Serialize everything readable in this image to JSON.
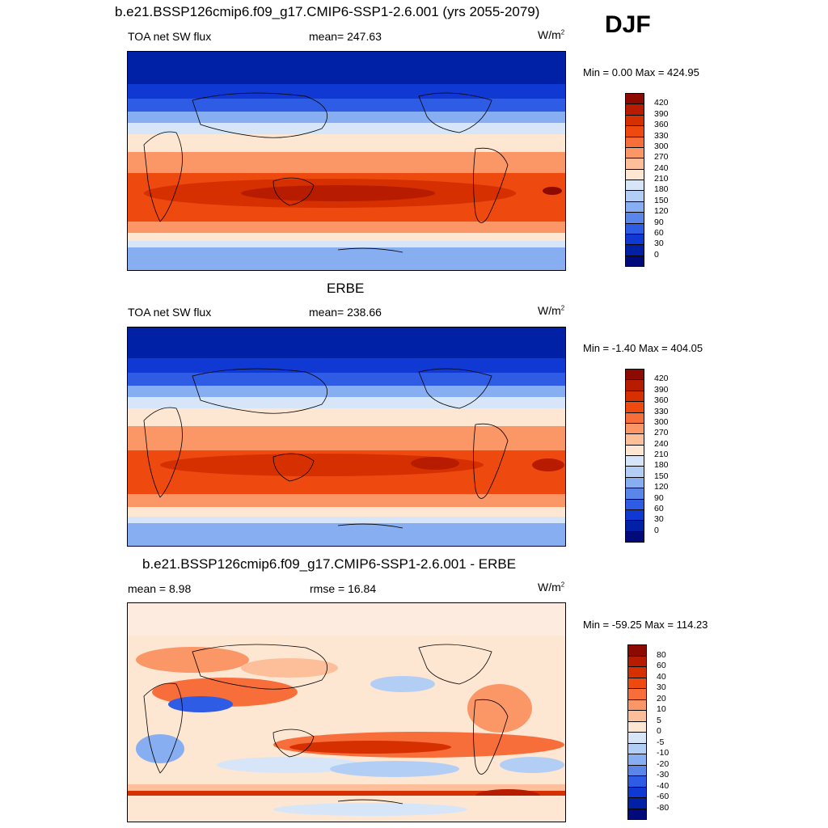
{
  "season": "DJF",
  "panels": [
    {
      "title": "b.e21.BSSP126cmip6.f09_g17.CMIP6-SSP1-2.6.001 (yrs 2055-2079)",
      "left": "TOA net SW flux",
      "middle": "mean= 247.63",
      "units_base": "W/m",
      "units_exp": "2",
      "minmax": "Min =   0.00 Max = 424.95",
      "colorbar": {
        "labels": [
          "420",
          "390",
          "360",
          "330",
          "300",
          "270",
          "240",
          "210",
          "180",
          "150",
          "120",
          "90",
          "60",
          "30",
          "0"
        ],
        "colors": [
          "#8c0a00",
          "#b81c00",
          "#d73000",
          "#ee4a10",
          "#f86e3a",
          "#fb9666",
          "#fdbf9a",
          "#fde6d2",
          "#d6e6f8",
          "#b2cef4",
          "#86aef0",
          "#5a86ea",
          "#2e5ce4",
          "#1038d2",
          "#0020a6",
          "#000a7a"
        ]
      }
    },
    {
      "title": "ERBE",
      "left": "TOA net SW flux",
      "middle": "mean= 238.66",
      "units_base": "W/m",
      "units_exp": "2",
      "minmax": "Min =  -1.40 Max = 404.05",
      "colorbar": {
        "labels": [
          "420",
          "390",
          "360",
          "330",
          "300",
          "270",
          "240",
          "210",
          "180",
          "150",
          "120",
          "90",
          "60",
          "30",
          "0"
        ],
        "colors": [
          "#8c0a00",
          "#b81c00",
          "#d73000",
          "#ee4a10",
          "#f86e3a",
          "#fb9666",
          "#fdbf9a",
          "#fde6d2",
          "#d6e6f8",
          "#b2cef4",
          "#86aef0",
          "#5a86ea",
          "#2e5ce4",
          "#1038d2",
          "#0020a6",
          "#000a7a"
        ]
      }
    },
    {
      "title": "b.e21.BSSP126cmip6.f09_g17.CMIP6-SSP1-2.6.001 - ERBE",
      "left": "mean =   8.98",
      "middle": "rmse =  16.84",
      "units_base": "W/m",
      "units_exp": "2",
      "minmax": "Min = -59.25 Max = 114.23",
      "colorbar": {
        "labels": [
          "80",
          "60",
          "40",
          "30",
          "20",
          "10",
          "5",
          "0",
          "-5",
          "-10",
          "-20",
          "-30",
          "-40",
          "-60",
          "-80"
        ],
        "colors": [
          "#8c0a00",
          "#b81c00",
          "#d73000",
          "#ee4a10",
          "#f86e3a",
          "#fb9666",
          "#fdbf9a",
          "#fde6d2",
          "#d6e6f8",
          "#b2cef4",
          "#86aef0",
          "#5a86ea",
          "#2e5ce4",
          "#1038d2",
          "#0020a6",
          "#000a7a"
        ]
      }
    }
  ]
}
